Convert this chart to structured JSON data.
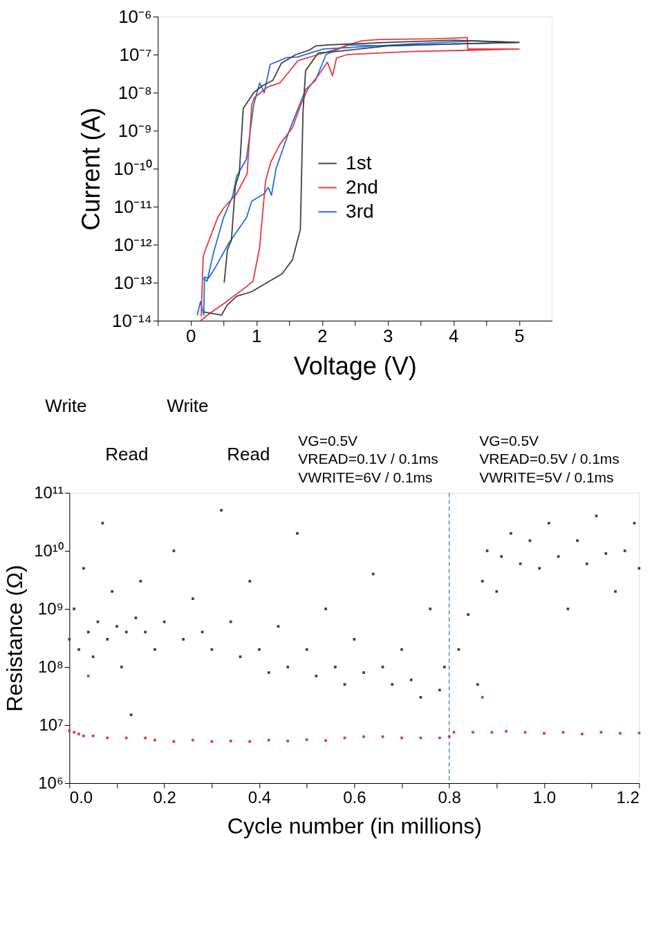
{
  "chart_data": [
    {
      "type": "line",
      "xlabel": "Voltage (V)",
      "ylabel": "Current (A)",
      "log": "y",
      "legend": "right",
      "line_style": "solid",
      "xlim": [
        -0.5,
        5.5
      ],
      "xticks": [
        {
          "value": -0.5,
          "label": null
        },
        0,
        {
          "value": 0.5,
          "label": null
        },
        1,
        {
          "value": 1.5,
          "label": null
        },
        2,
        {
          "value": 2.5,
          "label": null
        },
        3,
        {
          "value": 3.5,
          "label": null
        },
        4,
        {
          "value": 4.5,
          "label": null
        },
        5
      ],
      "ylim": [
        1e-14,
        1e-06
      ],
      "yticks": [
        {
          "value": 1e-14,
          "label": "10⁻¹⁴"
        },
        {
          "value": 1e-13,
          "label": "10⁻¹³"
        },
        {
          "value": 1e-12,
          "label": "10⁻¹²"
        },
        {
          "value": 1e-11,
          "label": "10⁻¹¹"
        },
        {
          "value": 1e-10,
          "label": "10⁻¹⁰"
        },
        {
          "value": 1e-09,
          "label": "10⁻⁹"
        },
        {
          "value": 1e-08,
          "label": "10⁻⁸"
        },
        {
          "value": 1e-07,
          "label": "10⁻⁷"
        },
        {
          "value": 1e-06,
          "label": "10⁻⁶"
        }
      ],
      "series": [
        {
          "name": "1st",
          "color": "#404040",
          "x": [
            0.2,
            0.47,
            0.55,
            0.7,
            0.93,
            1.12,
            1.39,
            1.55,
            1.64,
            1.67,
            1.71,
            1.75,
            1.94,
            2.2,
            3.0,
            4.0,
            5.0,
            4.0,
            3.0,
            2.11,
            1.91,
            1.8,
            1.6,
            1.38,
            1.25,
            1.09,
            0.96,
            0.8,
            0.74,
            0.68,
            0.62,
            0.56,
            0.51
          ],
          "values": [
            1.7e-14,
            1.4e-14,
            2.5e-14,
            4.4e-14,
            5.8e-14,
            9.1e-14,
            1.7e-13,
            4e-13,
            1.6e-12,
            2.5e-12,
            3e-09,
            3.8e-08,
            1.1e-07,
            1.2e-07,
            1.7e-07,
            1.9e-07,
            2.1e-07,
            2.4e-07,
            2.1e-07,
            1.8e-07,
            1.7e-07,
            1.3e-07,
            1e-07,
            5.9e-08,
            2.1e-08,
            1.5e-08,
            1e-08,
            3.8e-09,
            7.4e-11,
            3.5e-11,
            1.3e-12,
            7.4e-13,
            1e-13
          ]
        },
        {
          "name": "2nd",
          "color": "#e8383d",
          "x": [
            0.15,
            0.3,
            0.5,
            0.85,
            0.95,
            1.05,
            1.14,
            1.22,
            1.36,
            1.55,
            1.67,
            1.79,
            1.94,
            2.08,
            2.16,
            2.22,
            2.38,
            3.34,
            4.2,
            5.0,
            4.22,
            4.21,
            3.72,
            2.87,
            2.6,
            2.4,
            2.17,
            1.94,
            1.63,
            1.56,
            1.36,
            1.17,
            0.97,
            0.93,
            0.86,
            0.7,
            0.5,
            0.41,
            0.21,
            0.19,
            0.16
          ],
          "values": [
            1e-14,
            1.6e-14,
            2.8e-14,
            7.9e-14,
            1.1e-13,
            8.5e-13,
            4.7e-11,
            1.5e-10,
            4.4e-10,
            1.2e-09,
            4.5e-09,
            1.3e-08,
            2.8e-08,
            6.3e-08,
            2.8e-08,
            8.1e-08,
            1e-07,
            1.2e-07,
            1.3e-07,
            1.4e-07,
            1.4e-07,
            2.8e-07,
            2.6e-07,
            2.5e-07,
            2.3e-07,
            1.8e-07,
            1.3e-07,
            1e-07,
            6.9e-08,
            4.8e-08,
            1.8e-08,
            1.4e-08,
            7.4e-09,
            4.8e-09,
            7.4e-11,
            2.2e-11,
            9.1e-12,
            5.1e-12,
            6.3e-13,
            4.7e-13,
            1.3e-14
          ]
        },
        {
          "name": "3rd",
          "color": "#1f6fe0",
          "x": [
            0.1,
            0.15,
            0.2,
            0.21,
            0.27,
            0.38,
            0.58,
            0.85,
            0.93,
            1.12,
            1.18,
            1.23,
            1.3,
            1.51,
            1.75,
            1.9,
            2.06,
            2.21,
            2.4,
            2.95,
            4.0,
            5.0,
            4.31,
            3.34,
            2.02,
            1.63,
            1.46,
            1.21,
            1.12,
            1.05,
            0.96,
            0.85,
            0.7,
            0.64,
            0.5,
            0.35,
            0.25,
            0.19
          ],
          "values": [
            1.4e-14,
            3.2e-14,
            1.4e-14,
            1.4e-13,
            1.3e-13,
            2.6e-13,
            1.1e-12,
            5.1e-12,
            1.4e-11,
            2.2e-11,
            3.2e-11,
            2e-11,
            1e-10,
            1.1e-09,
            1.2e-08,
            2.1e-08,
            1e-07,
            1.3e-07,
            1.8e-07,
            1.7e-07,
            1.9e-07,
            2.1e-07,
            2.3e-07,
            1.9e-07,
            1.4e-07,
            8.7e-08,
            8.3e-08,
            5.5e-08,
            1e-08,
            1.8e-08,
            4.8e-09,
            1.8e-10,
            6.3e-11,
            1.9e-11,
            5.1e-12,
            6.3e-13,
            1.1e-13,
            1.3e-13
          ]
        }
      ]
    },
    {
      "type": "scatter",
      "xlabel": "Cycle number (in millions)",
      "ylabel": "Resistance (Ω)",
      "log": "y",
      "marker": "square",
      "xlim": [
        0,
        1.2
      ],
      "xticks": [
        {
          "value": 0,
          "label": "0.0"
        },
        {
          "value": 0.1,
          "label": null
        },
        0.2,
        {
          "value": 0.3,
          "label": null
        },
        0.4,
        {
          "value": 0.5,
          "label": null
        },
        0.6,
        {
          "value": 0.7,
          "label": null
        },
        0.8,
        {
          "value": 0.9,
          "label": null
        },
        {
          "value": 1,
          "label": "1.0"
        },
        {
          "value": 1.1,
          "label": null
        },
        1.2
      ],
      "ylim": [
        1000000.0,
        100000000000.0
      ],
      "yticks": [
        {
          "value": 1000000.0,
          "label": "10⁶"
        },
        {
          "value": 10000000.0,
          "label": "10⁷"
        },
        {
          "value": 100000000.0,
          "label": "10⁸"
        },
        {
          "value": 1000000000.0,
          "label": "10⁹"
        },
        {
          "value": 10000000000.0,
          "label": "10¹⁰"
        },
        {
          "value": 100000000000.0,
          "label": "10¹¹"
        }
      ],
      "ref_lines": [
        {
          "axis": "x",
          "value": 0.8,
          "color": "#3b6fd6",
          "line_style": "dashed"
        }
      ],
      "annotations": [
        "Write",
        "Read",
        "Write",
        "Read",
        "VG=0.5V\nVREAD=0.1V / 0.1ms\nVWRITE=6V / 0.1ms",
        "VG=0.5V\nVREAD=0.5V / 0.1ms\nVWRITE=5V / 0.1ms"
      ],
      "series": [
        {
          "color": "#404040",
          "x": [
            0.0,
            0.01,
            0.02,
            0.03,
            0.04,
            0.05,
            0.06,
            0.07,
            0.08,
            0.09,
            0.1,
            0.11,
            0.12,
            0.13,
            0.14,
            0.15,
            0.16,
            0.18,
            0.2,
            0.22,
            0.24,
            0.26,
            0.28,
            0.3,
            0.32,
            0.34,
            0.36,
            0.38,
            0.4,
            0.42,
            0.44,
            0.46,
            0.48,
            0.5,
            0.52,
            0.54,
            0.56,
            0.58,
            0.6,
            0.62,
            0.64,
            0.66,
            0.68,
            0.7,
            0.72,
            0.74,
            0.76,
            0.78,
            0.79,
            0.82,
            0.84,
            0.86,
            0.87,
            0.88,
            0.9,
            0.91,
            0.93,
            0.95,
            0.97,
            0.99,
            1.01,
            1.03,
            1.05,
            1.07,
            1.09,
            1.11,
            1.13,
            1.15,
            1.17,
            1.19,
            1.2
          ],
          "values": [
            300000000.0,
            1000000000.0,
            200000000.0,
            5000000000.0,
            400000000.0,
            150000000.0,
            600000000.0,
            30000000000.0,
            300000000.0,
            2000000000.0,
            500000000.0,
            100000000.0,
            400000000.0,
            15000000.0,
            700000000.0,
            3000000000.0,
            400000000.0,
            200000000.0,
            600000000.0,
            10000000000.0,
            300000000.0,
            1500000000.0,
            400000000.0,
            200000000.0,
            50000000000.0,
            600000000.0,
            150000000.0,
            3000000000.0,
            200000000.0,
            80000000.0,
            500000000.0,
            100000000.0,
            20000000000.0,
            200000000.0,
            70000000.0,
            1000000000.0,
            100000000.0,
            50000000.0,
            300000000.0,
            80000000.0,
            4000000000.0,
            100000000.0,
            50000000.0,
            200000000.0,
            60000000.0,
            30000000.0,
            1000000000.0,
            40000000.0,
            100000000.0,
            200000000.0,
            800000000.0,
            50000000.0,
            3000000000.0,
            10000000000.0,
            2000000000.0,
            8000000000.0,
            20000000000.0,
            6000000000.0,
            15000000000.0,
            5000000000.0,
            30000000000.0,
            8000000000.0,
            1000000000.0,
            15000000000.0,
            6000000000.0,
            40000000000.0,
            9000000000.0,
            2000000000.0,
            10000000000.0,
            30000000000.0,
            5000000000.0
          ]
        },
        {
          "color": "#e8383d",
          "x": [
            0.0,
            0.01,
            0.02,
            0.03,
            0.04,
            0.05,
            0.08,
            0.12,
            0.16,
            0.18,
            0.22,
            0.26,
            0.3,
            0.34,
            0.38,
            0.42,
            0.46,
            0.5,
            0.54,
            0.58,
            0.62,
            0.66,
            0.7,
            0.74,
            0.78,
            0.8,
            0.81,
            0.85,
            0.87,
            0.89,
            0.92,
            0.96,
            1.0,
            1.04,
            1.08,
            1.12,
            1.16,
            1.2
          ],
          "values": [
            8000000.0,
            7500000.0,
            7000000.0,
            6500000.0,
            70000000.0,
            6500000.0,
            6000000.0,
            6000000.0,
            6000000.0,
            5500000.0,
            5200000.0,
            5500000.0,
            5200000.0,
            5300000.0,
            5200000.0,
            5500000.0,
            5300000.0,
            5600000.0,
            5400000.0,
            6000000.0,
            6300000.0,
            6300000.0,
            6000000.0,
            6000000.0,
            6000000.0,
            6300000.0,
            7500000.0,
            7500000.0,
            30000000.0,
            7500000.0,
            7800000.0,
            7500000.0,
            7200000.0,
            7500000.0,
            7000000.0,
            7500000.0,
            7200000.0,
            7300000.0
          ]
        }
      ]
    }
  ]
}
